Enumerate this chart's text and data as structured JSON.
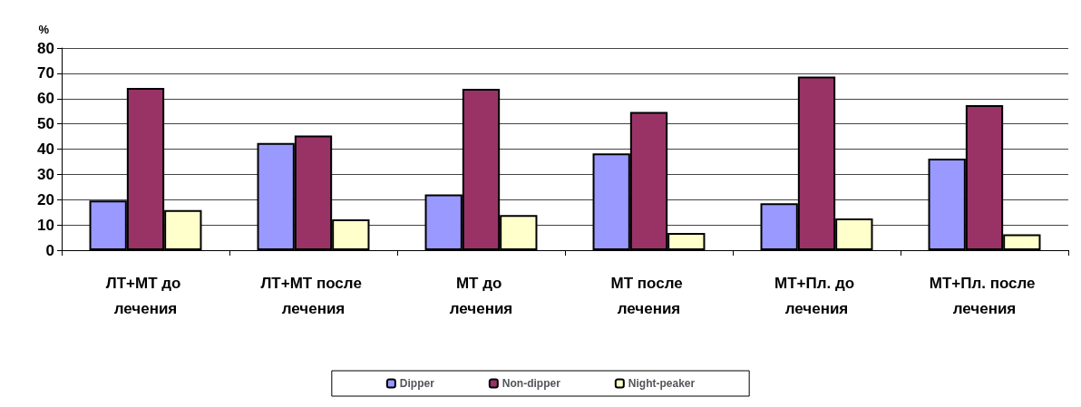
{
  "chart_data": {
    "type": "bar",
    "ylabel": "%",
    "categories": [
      "ЛТ+МТ до лечения",
      "ЛТ+МТ после лечения",
      "МТ до лечения",
      "МТ после лечения",
      "МТ+Пл. до лечения",
      "МТ+Пл. после лечения"
    ],
    "series": [
      {
        "name": "Dipper",
        "color": "#9999ff",
        "values": [
          19.6,
          42.4,
          22.1,
          38.3,
          18.6,
          36.2
        ]
      },
      {
        "name": "Non-dipper",
        "color": "#993366",
        "values": [
          64.2,
          45.4,
          63.9,
          54.7,
          68.7,
          57.4
        ]
      },
      {
        "name": "Night-peaker",
        "color": "#ffffcc",
        "values": [
          15.9,
          12.2,
          13.9,
          6.8,
          12.6,
          6.3
        ]
      }
    ],
    "ylim": [
      0,
      80
    ],
    "yticks": [
      0,
      10,
      20,
      30,
      40,
      50,
      60,
      70,
      80
    ],
    "grid": "y",
    "legend": "bottom"
  }
}
